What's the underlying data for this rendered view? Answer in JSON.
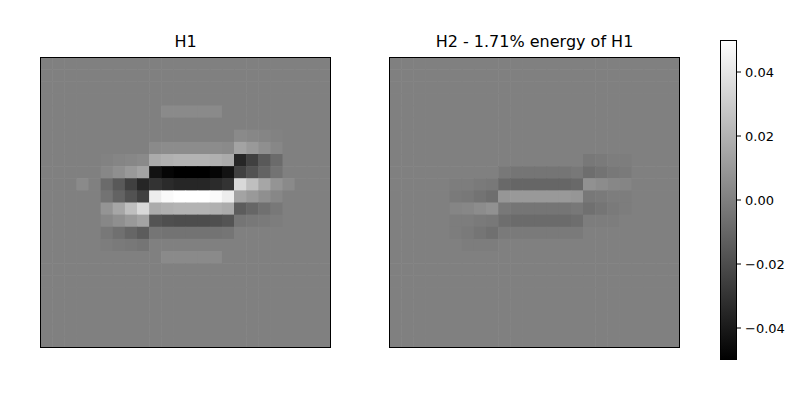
{
  "chart_data": [
    {
      "type": "heatmap",
      "title": "H1",
      "tick_labels": false,
      "cells": [
        [
          0,
          0,
          0,
          0,
          0,
          0,
          0,
          0,
          0,
          0,
          0,
          0,
          0,
          0,
          0,
          0,
          0,
          0,
          0,
          0,
          0,
          0,
          0,
          0
        ],
        [
          0,
          0,
          0,
          0,
          0,
          0,
          0,
          0,
          0,
          0,
          0,
          0,
          0,
          0,
          0,
          0,
          0,
          0,
          0,
          0,
          0,
          0,
          0,
          0
        ],
        [
          0,
          0,
          0,
          0,
          0,
          0,
          0,
          0,
          0,
          0,
          0,
          0,
          0,
          0,
          0,
          0,
          0,
          0,
          0,
          0,
          0,
          0,
          0,
          0
        ],
        [
          0,
          0,
          0,
          0,
          0,
          0,
          0,
          0,
          0,
          0,
          0,
          0,
          0,
          0,
          0,
          0,
          0,
          0,
          0,
          0,
          0,
          0,
          0,
          0
        ],
        [
          0,
          0,
          0,
          0,
          0,
          0,
          0,
          0,
          0,
          0,
          0.004,
          0.004,
          0.004,
          0.004,
          0.004,
          0,
          0,
          0,
          0,
          0,
          0,
          0,
          0,
          0
        ],
        [
          0,
          0,
          0,
          0,
          0,
          0,
          0,
          0,
          0,
          0,
          0,
          0,
          0,
          0,
          0,
          0,
          0,
          0,
          0,
          0,
          0,
          0,
          0,
          0
        ],
        [
          0,
          0,
          0,
          0,
          0,
          0,
          0,
          0,
          0,
          0,
          0,
          0,
          0,
          0,
          0,
          0,
          0.004,
          0.003,
          0.002,
          0.001,
          0,
          0,
          0,
          0
        ],
        [
          0,
          0,
          0,
          0,
          0,
          0,
          0,
          0,
          0,
          0.004,
          0.005,
          0.005,
          0.005,
          0.005,
          0.005,
          0.004,
          0.014,
          0.01,
          0.006,
          0.003,
          0,
          0,
          0,
          0
        ],
        [
          0,
          0,
          0,
          0,
          0,
          0.001,
          0.002,
          0.003,
          0.004,
          0.017,
          0.019,
          0.02,
          0.02,
          0.02,
          0.019,
          0.017,
          -0.035,
          -0.025,
          -0.015,
          -0.008,
          0,
          0,
          0,
          0
        ],
        [
          0,
          0,
          0,
          0,
          0,
          0.003,
          0.006,
          0.01,
          0.014,
          -0.043,
          -0.048,
          -0.05,
          -0.05,
          -0.05,
          -0.048,
          -0.043,
          -0.025,
          -0.018,
          -0.011,
          -0.005,
          0,
          0,
          0,
          0
        ],
        [
          0,
          0,
          0,
          0.004,
          0,
          -0.008,
          -0.015,
          -0.025,
          -0.035,
          -0.03,
          -0.033,
          -0.035,
          -0.035,
          -0.035,
          -0.033,
          -0.03,
          0.035,
          0.025,
          0.015,
          0.008,
          0.004,
          0,
          0,
          0
        ],
        [
          0,
          0,
          0,
          0,
          0,
          -0.005,
          -0.011,
          -0.018,
          -0.025,
          0.043,
          0.048,
          0.05,
          0.05,
          0.05,
          0.048,
          0.043,
          0.014,
          0.01,
          0.006,
          0.003,
          0,
          0,
          0,
          0
        ],
        [
          0,
          0,
          0,
          0,
          0,
          0.008,
          0.015,
          0.025,
          0.035,
          0.017,
          0.019,
          0.02,
          0.02,
          0.02,
          0.019,
          0.017,
          -0.014,
          -0.01,
          -0.006,
          -0.003,
          0,
          0,
          0,
          0
        ],
        [
          0,
          0,
          0,
          0,
          0,
          0.003,
          0.006,
          0.01,
          0.014,
          -0.017,
          -0.019,
          -0.02,
          -0.02,
          -0.02,
          -0.019,
          -0.017,
          -0.004,
          -0.003,
          -0.002,
          -0.001,
          0,
          0,
          0,
          0
        ],
        [
          0,
          0,
          0,
          0,
          0,
          -0.003,
          -0.006,
          -0.01,
          -0.014,
          -0.004,
          -0.005,
          -0.005,
          -0.005,
          -0.005,
          -0.005,
          -0.004,
          0,
          0,
          0,
          0,
          0,
          0,
          0,
          0
        ],
        [
          0,
          0,
          0,
          0,
          0,
          -0.001,
          -0.002,
          -0.003,
          -0.004,
          0,
          0,
          0,
          0,
          0,
          0,
          0,
          0,
          0,
          0,
          0,
          0,
          0,
          0,
          0
        ],
        [
          0,
          0,
          0,
          0,
          0,
          0,
          0,
          0,
          0,
          0,
          0.004,
          0.004,
          0.004,
          0.004,
          0.004,
          0,
          0,
          0,
          0,
          0,
          0,
          0,
          0,
          0
        ],
        [
          0,
          0,
          0,
          0,
          0,
          0,
          0,
          0,
          0,
          0,
          0,
          0,
          0,
          0,
          0,
          0,
          0,
          0,
          0,
          0,
          0,
          0,
          0,
          0
        ],
        [
          0,
          0,
          0,
          0,
          0,
          0,
          0,
          0,
          0,
          0,
          0,
          0,
          0,
          0,
          0,
          0,
          0,
          0,
          0,
          0,
          0,
          0,
          0,
          0
        ],
        [
          0,
          0,
          0,
          0,
          0,
          0,
          0,
          0,
          0,
          0,
          0,
          0,
          0,
          0,
          0,
          0,
          0,
          0,
          0,
          0,
          0,
          0,
          0,
          0
        ],
        [
          0,
          0,
          0,
          0,
          0,
          0,
          0,
          0,
          0,
          0,
          0,
          0,
          0,
          0,
          0,
          0,
          0,
          0,
          0,
          0,
          0,
          0,
          0,
          0
        ],
        [
          0,
          0,
          0,
          0,
          0,
          0,
          0,
          0,
          0,
          0,
          0,
          0,
          0,
          0,
          0,
          0,
          0,
          0,
          0,
          0,
          0,
          0,
          0,
          0
        ],
        [
          0,
          0,
          0,
          0,
          0,
          0,
          0,
          0,
          0,
          0,
          0,
          0,
          0,
          0,
          0,
          0,
          0,
          0,
          0,
          0,
          0,
          0,
          0,
          0
        ],
        [
          0,
          0,
          0,
          0,
          0,
          0,
          0,
          0,
          0,
          0,
          0,
          0,
          0,
          0,
          0,
          0,
          0,
          0,
          0,
          0,
          0,
          0,
          0,
          0
        ]
      ]
    },
    {
      "type": "heatmap",
      "title": "H2 - 1.71% energy of H1",
      "tick_labels": false,
      "cells": [
        [
          0,
          0,
          0,
          0,
          0,
          0,
          0,
          0,
          0,
          0,
          0,
          0,
          0,
          0,
          0,
          0,
          0,
          0,
          0,
          0,
          0,
          0,
          0,
          0
        ],
        [
          0,
          0,
          0,
          0,
          0,
          0,
          0,
          0,
          0,
          0,
          0,
          0,
          0,
          0,
          0,
          0,
          0,
          0,
          0,
          0,
          0,
          0,
          0,
          0
        ],
        [
          0,
          0,
          0,
          0,
          0,
          0,
          0,
          0,
          0,
          0,
          0,
          0,
          0,
          0,
          0,
          0,
          0,
          0,
          0,
          0,
          0,
          0,
          0,
          0
        ],
        [
          0,
          0,
          0,
          0,
          0,
          0,
          0,
          0,
          0,
          0,
          0,
          0,
          0,
          0,
          0,
          0,
          0,
          0,
          0,
          0,
          0,
          0,
          0,
          0
        ],
        [
          0,
          0,
          0,
          0,
          0,
          0,
          0,
          0,
          0,
          0,
          0,
          0,
          0,
          0,
          0,
          0,
          0,
          0,
          0,
          0,
          0,
          0,
          0,
          0
        ],
        [
          0,
          0,
          0,
          0,
          0,
          0,
          0,
          0,
          0,
          0,
          0,
          0,
          0,
          0,
          0,
          0,
          0,
          0,
          0,
          0,
          0,
          0,
          0,
          0
        ],
        [
          0,
          0,
          0,
          0,
          0,
          0,
          0,
          0,
          0,
          0,
          0,
          0,
          0,
          0,
          0,
          0,
          0,
          0,
          0,
          0,
          0,
          0,
          0,
          0
        ],
        [
          0,
          0,
          0,
          0,
          0,
          0,
          0,
          0,
          0,
          0,
          0,
          0,
          0,
          0,
          0,
          0,
          0,
          0,
          0,
          0,
          0,
          0,
          0,
          0
        ],
        [
          0,
          0,
          0,
          0,
          0,
          0,
          0,
          0,
          0,
          0,
          0,
          0,
          0,
          0,
          0,
          0,
          -0.003,
          -0.002,
          -0.001,
          -0.001,
          0,
          0,
          0,
          0
        ],
        [
          0,
          0,
          0,
          0,
          0,
          0,
          0,
          0,
          0,
          -0.003,
          -0.004,
          -0.004,
          -0.004,
          -0.004,
          -0.004,
          -0.003,
          -0.007,
          -0.005,
          -0.003,
          -0.002,
          0,
          0,
          0,
          0
        ],
        [
          0,
          0,
          0,
          0,
          0,
          -0.001,
          -0.001,
          -0.002,
          -0.003,
          -0.009,
          -0.01,
          -0.01,
          -0.01,
          -0.01,
          -0.01,
          -0.009,
          0.007,
          0.005,
          0.003,
          0.002,
          0,
          0,
          0,
          0
        ],
        [
          0,
          0,
          0,
          0,
          0,
          -0.002,
          -0.003,
          -0.005,
          -0.007,
          0.009,
          0.01,
          0.01,
          0.01,
          0.01,
          0.01,
          0.009,
          -0.003,
          -0.002,
          -0.001,
          -0.001,
          0,
          0,
          0,
          0
        ],
        [
          0,
          0,
          0,
          0,
          0,
          0.002,
          0.003,
          0.005,
          0.007,
          -0.003,
          -0.004,
          -0.004,
          -0.004,
          -0.004,
          -0.004,
          -0.003,
          -0.006,
          -0.004,
          -0.002,
          -0.001,
          0,
          0,
          0,
          0
        ],
        [
          0,
          0,
          0,
          0,
          0,
          -0.001,
          -0.001,
          -0.002,
          -0.003,
          -0.007,
          -0.008,
          -0.008,
          -0.008,
          -0.008,
          -0.008,
          -0.007,
          -0.001,
          -0.001,
          -0.001,
          0,
          0,
          0,
          0,
          0
        ],
        [
          0,
          0,
          0,
          0,
          0,
          -0.001,
          -0.002,
          -0.004,
          -0.006,
          -0.002,
          -0.002,
          -0.002,
          -0.002,
          -0.002,
          -0.002,
          -0.002,
          0,
          0,
          0,
          0,
          0,
          0,
          0,
          0
        ],
        [
          0,
          0,
          0,
          0,
          0,
          0,
          -0.001,
          -0.001,
          -0.001,
          0,
          0,
          0,
          0,
          0,
          0,
          0,
          0,
          0,
          0,
          0,
          0,
          0,
          0,
          0
        ],
        [
          0,
          0,
          0,
          0,
          0,
          0,
          0,
          0,
          0,
          0,
          0,
          0,
          0,
          0,
          0,
          0,
          0,
          0,
          0,
          0,
          0,
          0,
          0,
          0
        ],
        [
          0,
          0,
          0,
          0,
          0,
          0,
          0,
          0,
          0,
          0,
          0,
          0,
          0,
          0,
          0,
          0,
          0,
          0,
          0,
          0,
          0,
          0,
          0,
          0
        ],
        [
          0,
          0,
          0,
          0,
          0,
          0,
          0,
          0,
          0,
          0,
          0,
          0,
          0,
          0,
          0,
          0,
          0,
          0,
          0,
          0,
          0,
          0,
          0,
          0
        ],
        [
          0,
          0,
          0,
          0,
          0,
          0,
          0,
          0,
          0,
          0,
          0,
          0,
          0,
          0,
          0,
          0,
          0,
          0,
          0,
          0,
          0,
          0,
          0,
          0
        ],
        [
          0,
          0,
          0,
          0,
          0,
          0,
          0,
          0,
          0,
          0,
          0,
          0,
          0,
          0,
          0,
          0,
          0,
          0,
          0,
          0,
          0,
          0,
          0,
          0
        ],
        [
          0,
          0,
          0,
          0,
          0,
          0,
          0,
          0,
          0,
          0,
          0,
          0,
          0,
          0,
          0,
          0,
          0,
          0,
          0,
          0,
          0,
          0,
          0,
          0
        ],
        [
          0,
          0,
          0,
          0,
          0,
          0,
          0,
          0,
          0,
          0,
          0,
          0,
          0,
          0,
          0,
          0,
          0,
          0,
          0,
          0,
          0,
          0,
          0,
          0
        ],
        [
          0,
          0,
          0,
          0,
          0,
          0,
          0,
          0,
          0,
          0,
          0,
          0,
          0,
          0,
          0,
          0,
          0,
          0,
          0,
          0,
          0,
          0,
          0,
          0
        ]
      ]
    },
    {
      "type": "colorbar",
      "color": "gray",
      "range": [
        -0.05,
        0.05
      ],
      "ticks": [
        {
          "value": -0.04,
          "label": "−0.04"
        },
        {
          "value": -0.02,
          "label": "−0.02"
        },
        {
          "value": 0,
          "label": "0.00"
        },
        {
          "value": 0.02,
          "label": "0.02"
        },
        {
          "value": 0.04,
          "label": "0.04"
        }
      ]
    }
  ]
}
